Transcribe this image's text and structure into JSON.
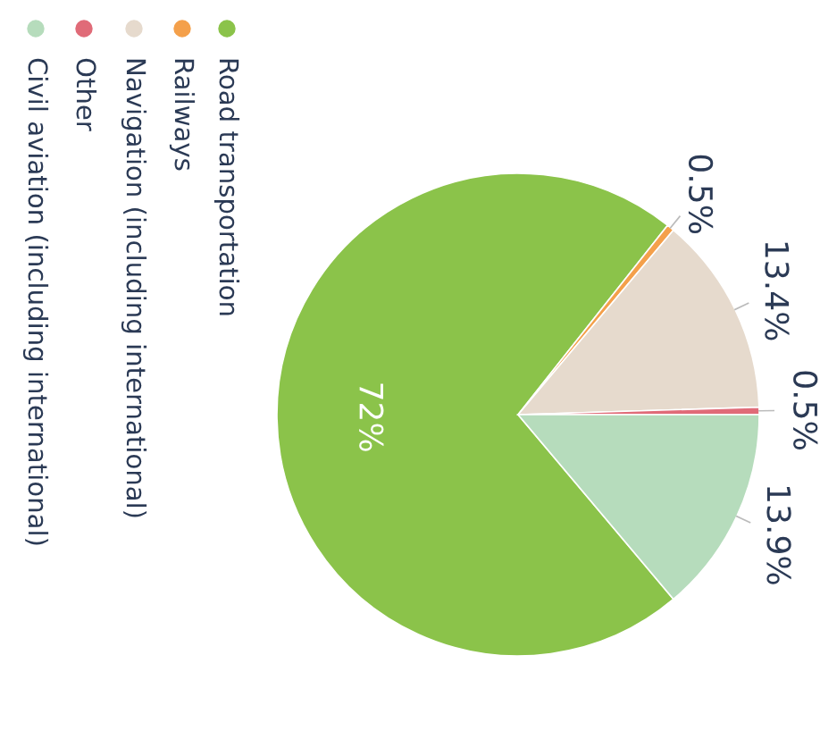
{
  "chart_data": {
    "type": "pie",
    "categories": [
      "Road transportation",
      "Railways",
      "Navigation (including international)",
      "Other",
      "Civil aviation (including international)"
    ],
    "values": [
      72,
      0.5,
      13.4,
      0.5,
      13.9
    ],
    "colors": [
      "#8bc34a",
      "#f4a04b",
      "#e6dacd",
      "#e06b78",
      "#b6dcbc"
    ],
    "value_labels": [
      "72%",
      "0.5%",
      "13.4%",
      "0.5%",
      "13.9%"
    ],
    "legend": "left"
  }
}
